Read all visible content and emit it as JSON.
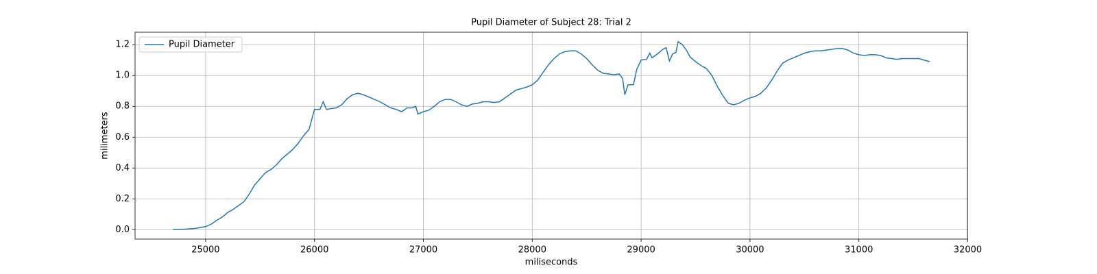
{
  "chart_data": {
    "type": "line",
    "title": "Pupil Diameter of Subject 28: Trial 2",
    "x_label": "miliseconds",
    "y_label": "milimeters",
    "x": [
      24700,
      24800,
      24900,
      25000,
      25050,
      25100,
      25150,
      25200,
      25250,
      25300,
      25350,
      25400,
      25450,
      25500,
      25550,
      25600,
      25650,
      25700,
      25750,
      25800,
      25850,
      25900,
      25950,
      26000,
      26050,
      26080,
      26110,
      26150,
      26200,
      26250,
      26300,
      26350,
      26400,
      26450,
      26500,
      26550,
      26600,
      26650,
      26700,
      26750,
      26800,
      26850,
      26900,
      26930,
      26950,
      27000,
      27050,
      27100,
      27150,
      27200,
      27250,
      27300,
      27350,
      27400,
      27450,
      27500,
      27550,
      27600,
      27650,
      27700,
      27750,
      27800,
      27850,
      27900,
      27950,
      28000,
      28050,
      28100,
      28150,
      28200,
      28250,
      28300,
      28350,
      28400,
      28450,
      28500,
      28550,
      28600,
      28650,
      28700,
      28750,
      28800,
      28830,
      28850,
      28880,
      28930,
      28960,
      29000,
      29050,
      29080,
      29100,
      29150,
      29200,
      29230,
      29260,
      29290,
      29320,
      29340,
      29380,
      29420,
      29450,
      29500,
      29550,
      29600,
      29650,
      29700,
      29750,
      29800,
      29850,
      29900,
      29950,
      30000,
      30050,
      30100,
      30150,
      30200,
      30250,
      30300,
      30350,
      30400,
      30450,
      30500,
      30550,
      30600,
      30650,
      30700,
      30750,
      30800,
      30850,
      30900,
      30950,
      31000,
      31050,
      31100,
      31150,
      31200,
      31250,
      31300,
      31350,
      31400,
      31450,
      31500,
      31550,
      31600,
      31650
    ],
    "series": [
      {
        "name": "Pupil Diameter",
        "color": "#1f77b4",
        "values": [
          0.0,
          0.003,
          0.008,
          0.02,
          0.035,
          0.06,
          0.08,
          0.11,
          0.13,
          0.155,
          0.18,
          0.23,
          0.29,
          0.33,
          0.37,
          0.39,
          0.42,
          0.46,
          0.49,
          0.52,
          0.56,
          0.61,
          0.65,
          0.78,
          0.78,
          0.83,
          0.78,
          0.785,
          0.79,
          0.81,
          0.85,
          0.875,
          0.885,
          0.875,
          0.86,
          0.845,
          0.83,
          0.81,
          0.79,
          0.78,
          0.765,
          0.79,
          0.79,
          0.8,
          0.75,
          0.765,
          0.775,
          0.8,
          0.83,
          0.845,
          0.845,
          0.83,
          0.81,
          0.8,
          0.815,
          0.82,
          0.83,
          0.83,
          0.825,
          0.83,
          0.855,
          0.88,
          0.905,
          0.915,
          0.925,
          0.94,
          0.97,
          1.02,
          1.07,
          1.11,
          1.14,
          1.155,
          1.16,
          1.16,
          1.14,
          1.11,
          1.07,
          1.035,
          1.015,
          1.01,
          1.005,
          1.01,
          0.98,
          0.875,
          0.94,
          0.94,
          1.04,
          1.1,
          1.105,
          1.145,
          1.115,
          1.14,
          1.17,
          1.18,
          1.095,
          1.14,
          1.15,
          1.22,
          1.2,
          1.16,
          1.12,
          1.09,
          1.065,
          1.045,
          1.0,
          0.93,
          0.87,
          0.82,
          0.81,
          0.82,
          0.84,
          0.855,
          0.865,
          0.885,
          0.92,
          0.97,
          1.03,
          1.08,
          1.1,
          1.115,
          1.13,
          1.145,
          1.155,
          1.16,
          1.16,
          1.165,
          1.17,
          1.175,
          1.175,
          1.165,
          1.145,
          1.135,
          1.13,
          1.135,
          1.135,
          1.13,
          1.115,
          1.11,
          1.105,
          1.11,
          1.11,
          1.11,
          1.11,
          1.1,
          1.09
        ]
      }
    ],
    "xlim": [
      24352,
      31997
    ],
    "xticks": [
      25000,
      26000,
      27000,
      28000,
      29000,
      30000,
      31000,
      32000
    ],
    "ylim": [
      -0.061,
      1.281
    ],
    "yticks": [
      {
        "value": 0,
        "label": "0.0"
      },
      0.2,
      0.4,
      0.6,
      0.8,
      {
        "value": 1,
        "label": "1.0"
      },
      1.2
    ],
    "grid": true,
    "legend": "upper left"
  }
}
